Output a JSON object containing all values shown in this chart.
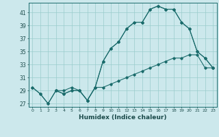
{
  "title": "",
  "xlabel": "Humidex (Indice chaleur)",
  "bg_color": "#cce8ec",
  "line_color": "#1a6b6b",
  "grid_color": "#99cccc",
  "ylim": [
    26.5,
    42.5
  ],
  "xlim": [
    -0.5,
    23.5
  ],
  "yticks": [
    27,
    29,
    31,
    33,
    35,
    37,
    39,
    41
  ],
  "xticks": [
    0,
    1,
    2,
    3,
    4,
    5,
    6,
    7,
    8,
    9,
    10,
    11,
    12,
    13,
    14,
    15,
    16,
    17,
    18,
    19,
    20,
    21,
    22,
    23
  ],
  "line1_x": [
    0,
    1,
    2,
    3,
    4,
    5,
    6,
    7,
    8,
    9,
    10,
    11,
    12,
    13,
    14,
    15,
    16,
    17,
    18,
    19,
    20,
    21,
    22,
    23
  ],
  "line1_y": [
    29.5,
    28.5,
    27.0,
    29.0,
    29.0,
    29.5,
    29.0,
    27.5,
    29.5,
    33.5,
    35.5,
    36.5,
    38.5,
    39.5,
    39.5,
    41.5,
    42.0,
    41.5,
    41.5,
    39.5,
    38.5,
    35.0,
    34.0,
    32.5
  ],
  "line2_x": [
    0,
    1,
    2,
    3,
    4,
    5,
    6,
    7,
    8,
    9,
    10,
    11,
    12,
    13,
    14,
    15,
    16,
    17,
    18,
    19,
    20,
    21,
    22,
    23
  ],
  "line2_y": [
    29.5,
    28.5,
    27.0,
    29.0,
    28.5,
    29.0,
    29.0,
    27.5,
    29.5,
    29.5,
    30.0,
    30.5,
    31.0,
    31.5,
    32.0,
    32.5,
    33.0,
    33.5,
    34.0,
    34.0,
    34.5,
    34.5,
    32.5,
    32.5
  ],
  "line3_x": [
    3,
    4,
    5,
    6,
    7,
    8,
    9,
    10,
    11,
    12,
    13,
    14,
    15,
    16,
    17,
    18,
    19,
    20,
    21,
    22,
    23
  ],
  "line3_y": [
    29.0,
    28.5,
    29.0,
    29.0,
    27.5,
    29.5,
    33.5,
    35.5,
    36.5,
    38.5,
    39.5,
    39.5,
    41.5,
    42.0,
    41.5,
    41.5,
    39.5,
    38.5,
    35.0,
    34.0,
    32.5
  ]
}
